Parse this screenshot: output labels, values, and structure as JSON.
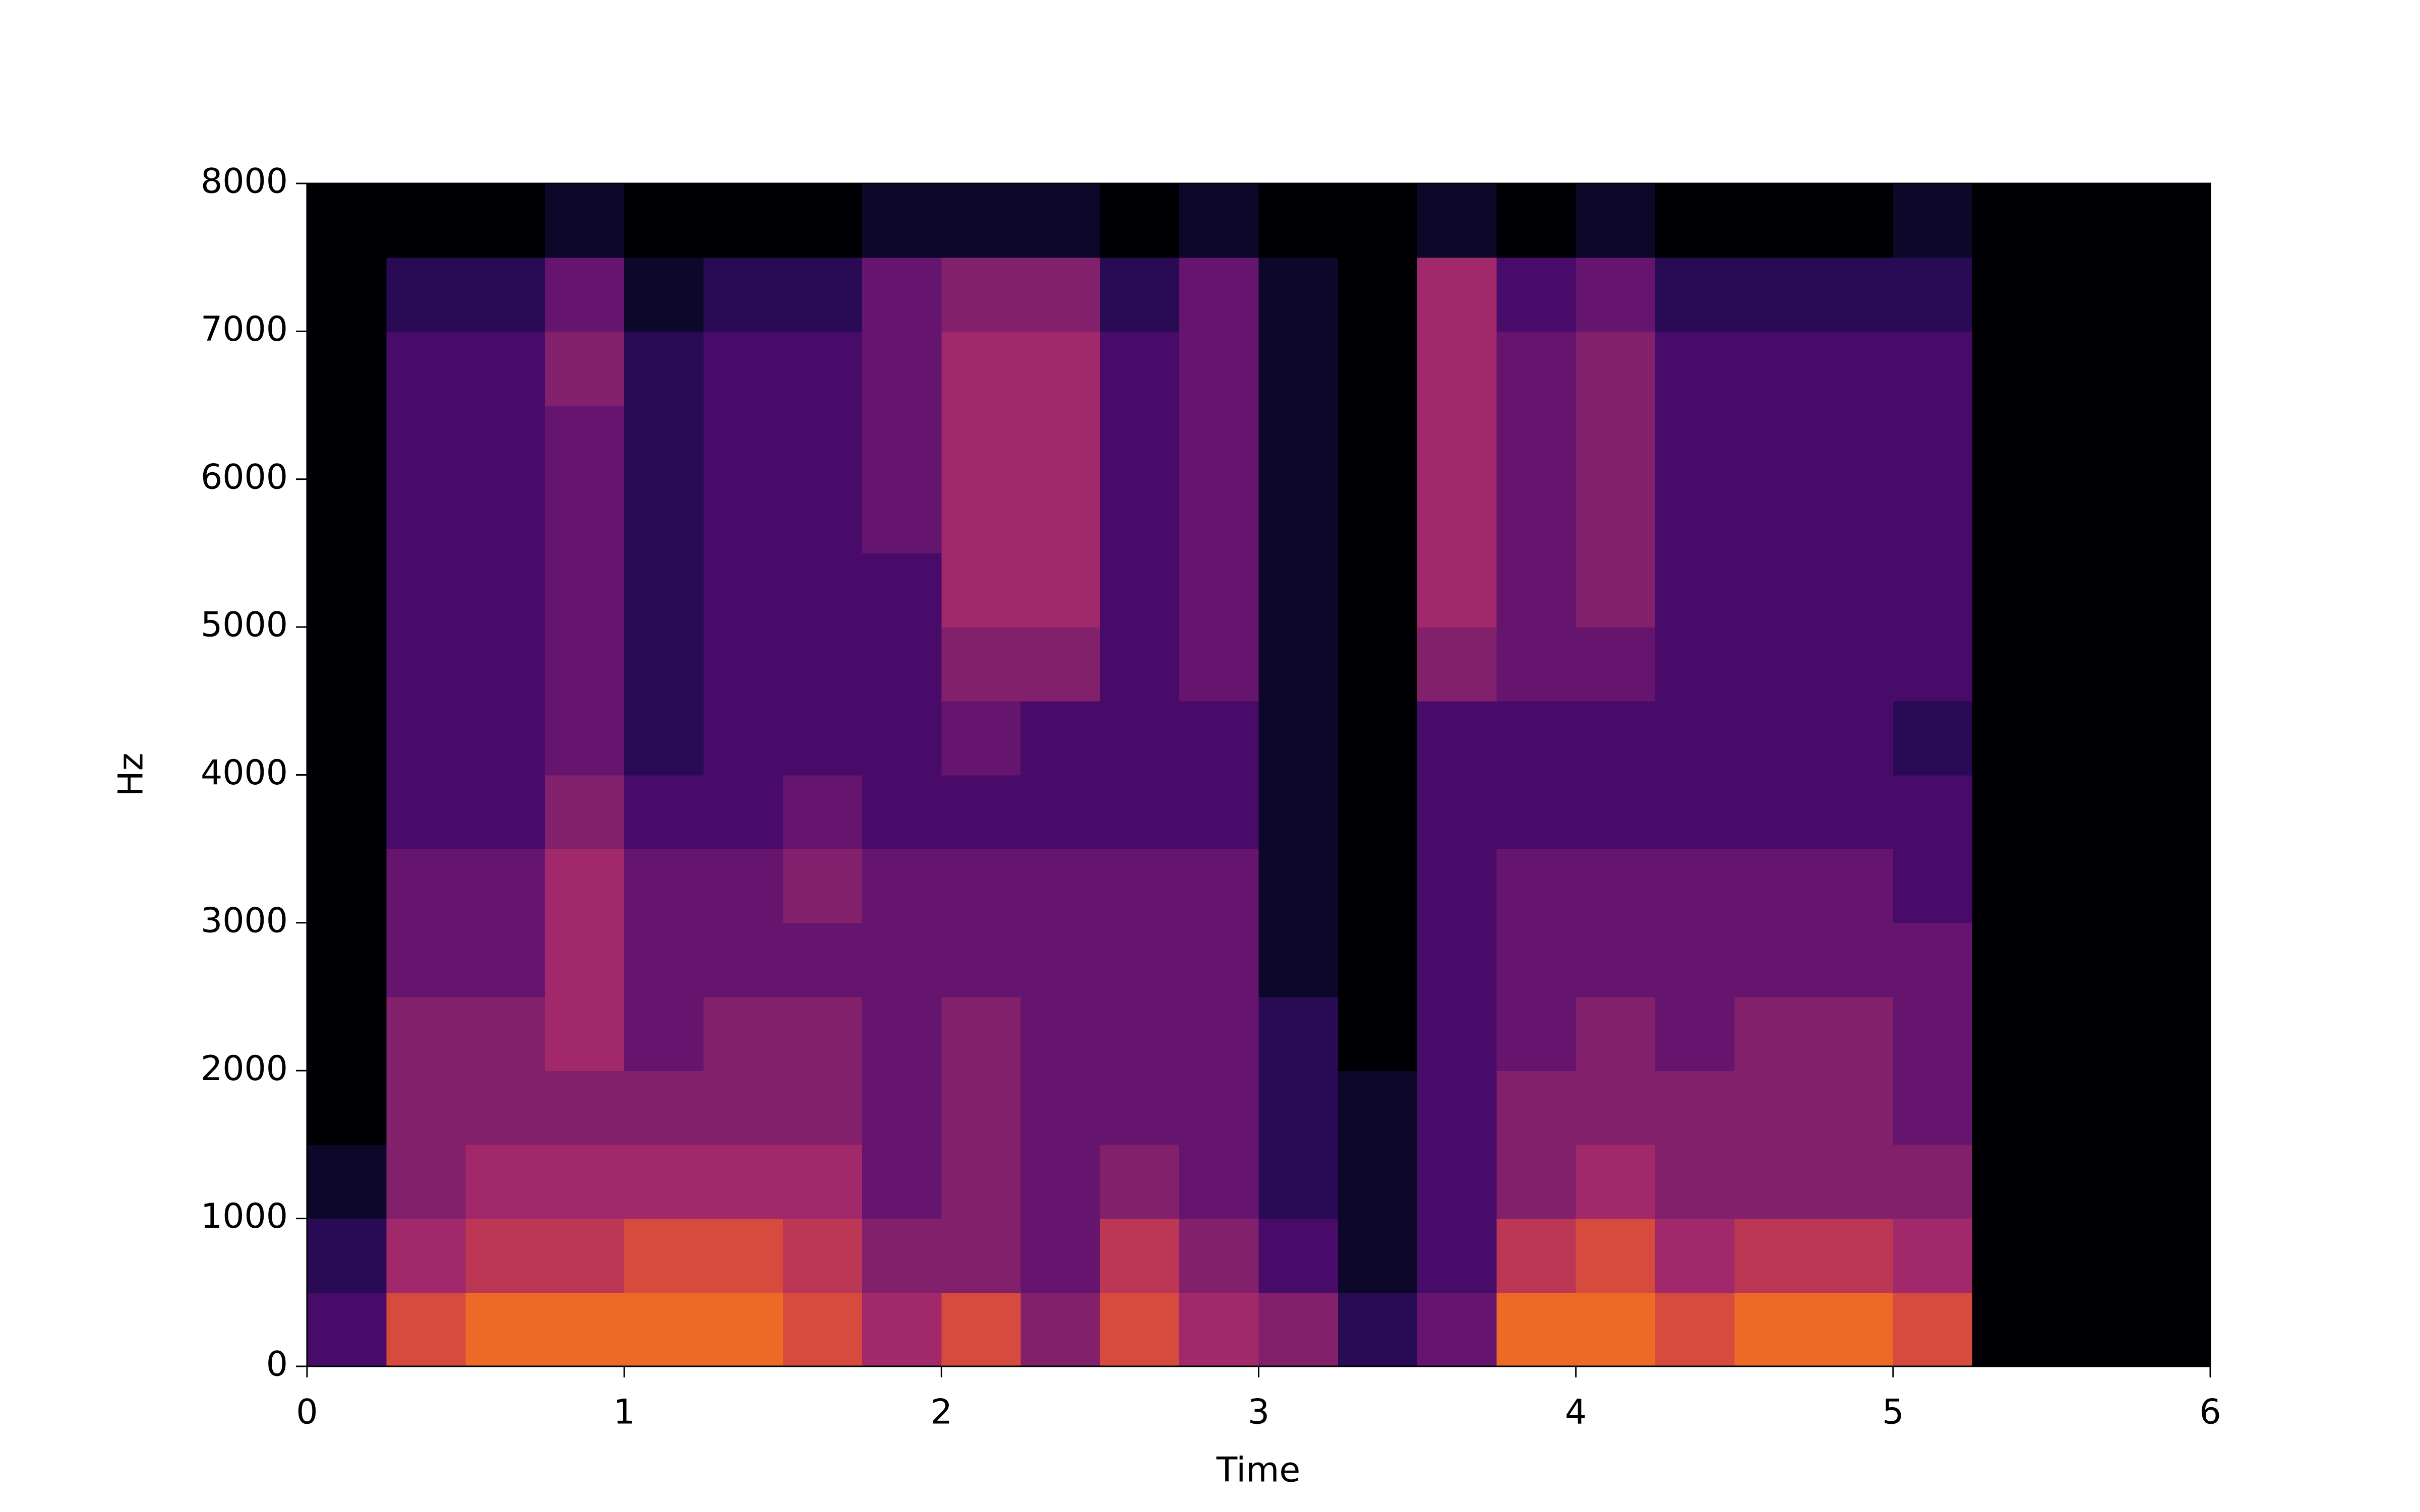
{
  "chart_data": {
    "type": "spectrogram",
    "xlabel": "Time",
    "ylabel": "Hz",
    "xlim": [
      0,
      6
    ],
    "ylim": [
      0,
      8000
    ],
    "xticks": [
      0,
      1,
      2,
      3,
      4,
      5,
      6
    ],
    "yticks": [
      0,
      1000,
      2000,
      3000,
      4000,
      5000,
      6000,
      7000,
      8000
    ],
    "xbins": [
      0,
      0.25,
      0.5,
      0.75,
      1,
      1.25,
      1.5,
      1.75,
      2,
      2.25,
      2.5,
      2.75,
      3,
      3.25,
      3.5,
      3.75,
      4,
      4.25,
      4.5,
      4.75,
      5,
      5.25,
      5.5,
      5.75,
      6
    ],
    "ybins": [
      0,
      500,
      1000,
      1500,
      2000,
      2500,
      3000,
      3500,
      4000,
      4500,
      5000,
      5500,
      6000,
      6500,
      7000,
      7500,
      8000
    ],
    "zlim": [
      0,
      10
    ],
    "colormap": [
      "#000004",
      "#0d0829",
      "#280b54",
      "#480b6a",
      "#65156e",
      "#82206c",
      "#a1286a",
      "#bc3754",
      "#d74b3f",
      "#ed6925",
      "#fb9b06"
    ],
    "z": [
      [
        3,
        2,
        1,
        0,
        0,
        0,
        0,
        0,
        0,
        0,
        0,
        0,
        0,
        0,
        0,
        0
      ],
      [
        8,
        6,
        5,
        5,
        5,
        4,
        4,
        3,
        3,
        3,
        3,
        3,
        3,
        3,
        2,
        0
      ],
      [
        9,
        7,
        6,
        5,
        5,
        4,
        4,
        3,
        3,
        3,
        3,
        3,
        3,
        3,
        2,
        0
      ],
      [
        9,
        7,
        6,
        5,
        6,
        6,
        6,
        5,
        4,
        4,
        4,
        4,
        4,
        5,
        4,
        1
      ],
      [
        9,
        8,
        6,
        5,
        4,
        4,
        4,
        3,
        2,
        2,
        2,
        2,
        2,
        2,
        1,
        0
      ],
      [
        9,
        8,
        6,
        5,
        5,
        4,
        4,
        3,
        3,
        3,
        3,
        3,
        3,
        3,
        2,
        0
      ],
      [
        8,
        7,
        6,
        5,
        5,
        4,
        5,
        4,
        3,
        3,
        3,
        3,
        3,
        3,
        2,
        0
      ],
      [
        6,
        5,
        4,
        4,
        4,
        4,
        4,
        3,
        3,
        3,
        3,
        4,
        4,
        4,
        4,
        1
      ],
      [
        8,
        5,
        5,
        5,
        5,
        4,
        4,
        3,
        4,
        5,
        6,
        6,
        6,
        6,
        5,
        1
      ],
      [
        5,
        4,
        4,
        4,
        4,
        4,
        4,
        3,
        3,
        5,
        6,
        6,
        6,
        6,
        5,
        1
      ],
      [
        8,
        7,
        5,
        4,
        4,
        4,
        4,
        3,
        3,
        3,
        3,
        3,
        3,
        3,
        2,
        0
      ],
      [
        6,
        5,
        4,
        4,
        4,
        4,
        4,
        3,
        3,
        4,
        4,
        4,
        4,
        4,
        4,
        1
      ],
      [
        5,
        3,
        2,
        2,
        2,
        1,
        1,
        1,
        1,
        1,
        1,
        1,
        1,
        1,
        1,
        0
      ],
      [
        2,
        1,
        1,
        1,
        0,
        0,
        0,
        0,
        0,
        0,
        0,
        0,
        0,
        0,
        0,
        0
      ],
      [
        4,
        3,
        3,
        3,
        3,
        3,
        3,
        3,
        3,
        5,
        6,
        6,
        6,
        6,
        6,
        1
      ],
      [
        9,
        7,
        5,
        5,
        4,
        4,
        4,
        3,
        3,
        4,
        4,
        4,
        4,
        4,
        3,
        0
      ],
      [
        9,
        8,
        6,
        5,
        5,
        4,
        4,
        3,
        3,
        4,
        5,
        5,
        5,
        5,
        4,
        1
      ],
      [
        8,
        6,
        5,
        5,
        4,
        4,
        4,
        3,
        3,
        3,
        3,
        3,
        3,
        3,
        2,
        0
      ],
      [
        9,
        7,
        5,
        5,
        5,
        4,
        4,
        3,
        3,
        3,
        3,
        3,
        3,
        3,
        2,
        0
      ],
      [
        9,
        7,
        5,
        5,
        5,
        4,
        4,
        3,
        3,
        3,
        3,
        3,
        3,
        3,
        2,
        0
      ],
      [
        8,
        6,
        5,
        4,
        4,
        4,
        3,
        3,
        2,
        3,
        3,
        3,
        3,
        3,
        2,
        1
      ],
      [
        0,
        0,
        0,
        0,
        0,
        0,
        0,
        0,
        0,
        0,
        0,
        0,
        0,
        0,
        0,
        0
      ],
      [
        0,
        0,
        0,
        0,
        0,
        0,
        0,
        0,
        0,
        0,
        0,
        0,
        0,
        0,
        0,
        0
      ],
      [
        0,
        0,
        0,
        0,
        0,
        0,
        0,
        0,
        0,
        0,
        0,
        0,
        0,
        0,
        0,
        0
      ]
    ]
  }
}
